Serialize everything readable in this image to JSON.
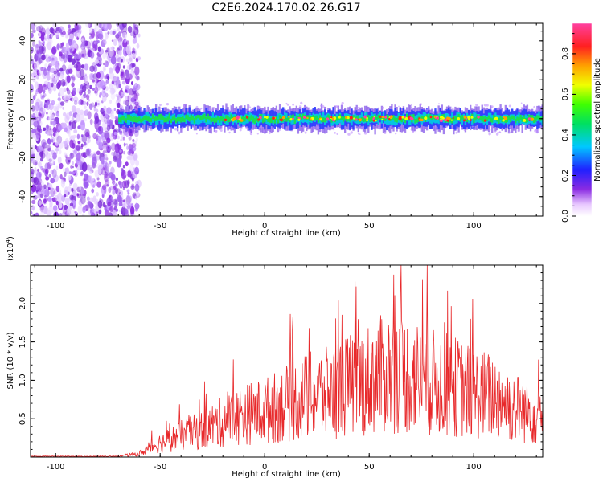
{
  "title": "C2E6.2024.170.02.26.G17",
  "colors": {
    "snr_line": "#e8292b",
    "axis": "#000000",
    "background": "#ffffff"
  },
  "colorbar": {
    "label": "Normalized spectral amplitude",
    "range": [
      0.0,
      0.95
    ],
    "ticks": [
      "0.0",
      "0.2",
      "0.4",
      "0.6",
      "0.8"
    ],
    "tick_values": [
      0.0,
      0.2,
      0.4,
      0.6,
      0.8
    ],
    "colormap": "rainbow (white-purple-blue-cyan-green-yellow-red-magenta)"
  },
  "chart_data": [
    {
      "type": "heatmap",
      "name": "spectrogram",
      "xlabel": "Height of straight line (km)",
      "ylabel": "Frequency (Hz)",
      "xlim": [
        -112,
        133
      ],
      "ylim": [
        -50,
        49
      ],
      "xticks": [
        "-100",
        "-50",
        "0",
        "50",
        "100"
      ],
      "xtick_values": [
        -100,
        -50,
        0,
        50,
        100
      ],
      "yticks": [
        "-40",
        "-20",
        "0",
        "20",
        "40"
      ],
      "ytick_values": [
        -40,
        -20,
        0,
        20,
        40
      ],
      "description_values": {
        "noise_region_x": [
          -112,
          -65
        ],
        "signal_band_center_hz": 0,
        "signal_band_halfwidth_hz": 4,
        "signal_start_x": -70
      }
    },
    {
      "type": "line",
      "name": "snr",
      "xlabel": "Height of straight line (km)",
      "ylabel": "SNR (10 * v/v)",
      "multiplier_label": "(x10",
      "multiplier_exp": "4",
      "multiplier_close": ")",
      "xlim": [
        -112,
        133
      ],
      "ylim": [
        0,
        2.5
      ],
      "xticks": [
        "-100",
        "-50",
        "0",
        "50",
        "100"
      ],
      "xtick_values": [
        -100,
        -50,
        0,
        50,
        100
      ],
      "yticks": [
        "0.5",
        "1.0",
        "1.5",
        "2.0"
      ],
      "ytick_values": [
        0.5,
        1.0,
        1.5,
        2.0
      ],
      "envelope_x": [
        -112,
        -70,
        -60,
        -50,
        -40,
        -30,
        -20,
        -10,
        0,
        10,
        20,
        30,
        40,
        50,
        60,
        70,
        80,
        90,
        100,
        110,
        120,
        130,
        133
      ],
      "envelope_y": [
        0.01,
        0.01,
        0.05,
        0.2,
        0.3,
        0.38,
        0.5,
        0.6,
        0.65,
        0.75,
        0.85,
        0.9,
        1.0,
        1.1,
        1.2,
        1.15,
        1.05,
        1.0,
        0.9,
        0.85,
        0.7,
        0.6,
        0.65
      ]
    }
  ]
}
